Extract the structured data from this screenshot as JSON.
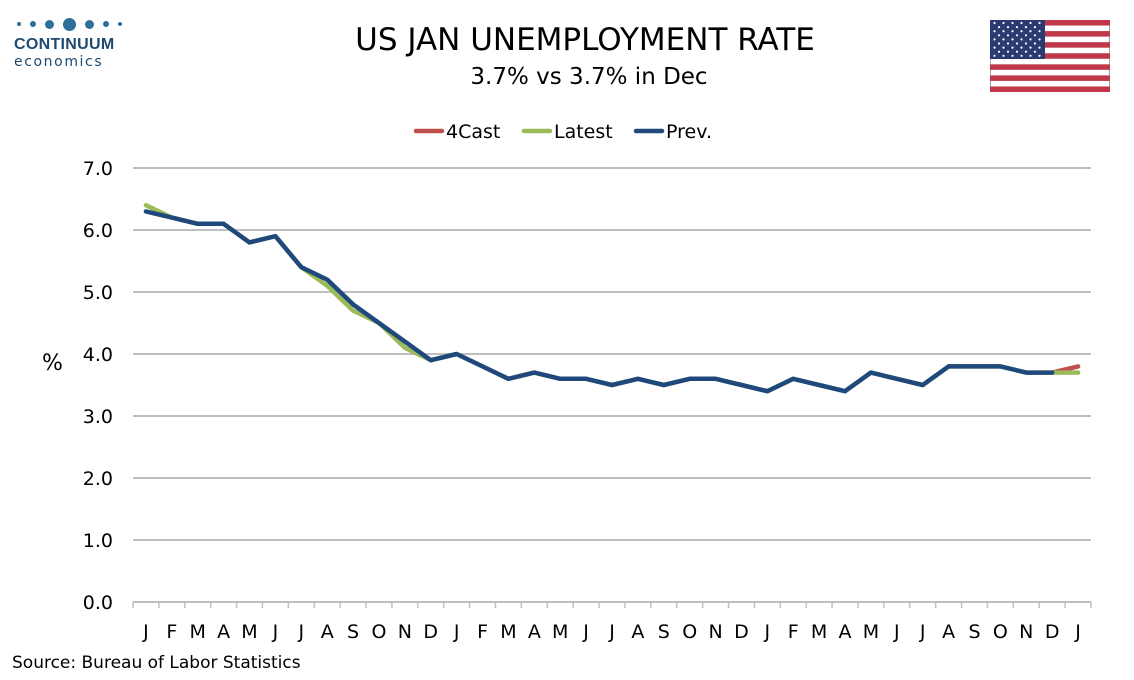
{
  "logo": {
    "name": "CONTINUUM",
    "sub": "economics",
    "color": "#1f4a70"
  },
  "header": {
    "title": "US JAN UNEMPLOYMENT RATE",
    "subtitle": "3.7% vs 3.7% in Dec"
  },
  "flag": {
    "icon": "us-flag-icon"
  },
  "footer": {
    "source": "Source: Bureau of Labor Statistics"
  },
  "chart_data": {
    "type": "line",
    "title": "US JAN UNEMPLOYMENT RATE",
    "subtitle": "3.7% vs 3.7% in Dec",
    "ylabel": "%",
    "xlabel": "",
    "ylim": [
      0,
      7
    ],
    "yticks": [
      "0.0",
      "1.0",
      "2.0",
      "3.0",
      "4.0",
      "5.0",
      "6.0",
      "7.0"
    ],
    "categories": [
      "J",
      "F",
      "M",
      "A",
      "M",
      "J",
      "J",
      "A",
      "S",
      "O",
      "N",
      "D",
      "J",
      "F",
      "M",
      "A",
      "M",
      "J",
      "J",
      "A",
      "S",
      "O",
      "N",
      "D",
      "J",
      "F",
      "M",
      "A",
      "M",
      "J",
      "J",
      "A",
      "S",
      "O",
      "N",
      "D",
      "J"
    ],
    "grid": true,
    "legend_position": "top-center",
    "series": [
      {
        "name": "4Cast",
        "color": "#c0504d",
        "values": [
          null,
          null,
          null,
          null,
          null,
          null,
          null,
          null,
          null,
          null,
          null,
          null,
          null,
          null,
          null,
          null,
          null,
          null,
          null,
          null,
          null,
          null,
          null,
          null,
          null,
          null,
          null,
          null,
          null,
          null,
          null,
          null,
          null,
          null,
          null,
          3.7,
          3.8
        ]
      },
      {
        "name": "Latest",
        "color": "#9bbb59",
        "values": [
          6.4,
          6.2,
          6.1,
          6.1,
          5.8,
          5.9,
          5.4,
          5.1,
          4.7,
          4.5,
          4.1,
          3.9,
          4.0,
          3.8,
          3.6,
          3.7,
          3.6,
          3.6,
          3.5,
          3.6,
          3.5,
          3.6,
          3.6,
          3.5,
          3.4,
          3.6,
          3.5,
          3.4,
          3.7,
          3.6,
          3.5,
          3.8,
          3.8,
          3.8,
          3.7,
          3.7,
          3.7
        ]
      },
      {
        "name": "Prev.",
        "color": "#1f497d",
        "values": [
          6.3,
          6.2,
          6.1,
          6.1,
          5.8,
          5.9,
          5.4,
          5.2,
          4.8,
          4.5,
          4.2,
          3.9,
          4.0,
          3.8,
          3.6,
          3.7,
          3.6,
          3.6,
          3.5,
          3.6,
          3.5,
          3.6,
          3.6,
          3.5,
          3.4,
          3.6,
          3.5,
          3.4,
          3.7,
          3.6,
          3.5,
          3.8,
          3.8,
          3.8,
          3.7,
          3.7,
          null
        ]
      }
    ]
  }
}
